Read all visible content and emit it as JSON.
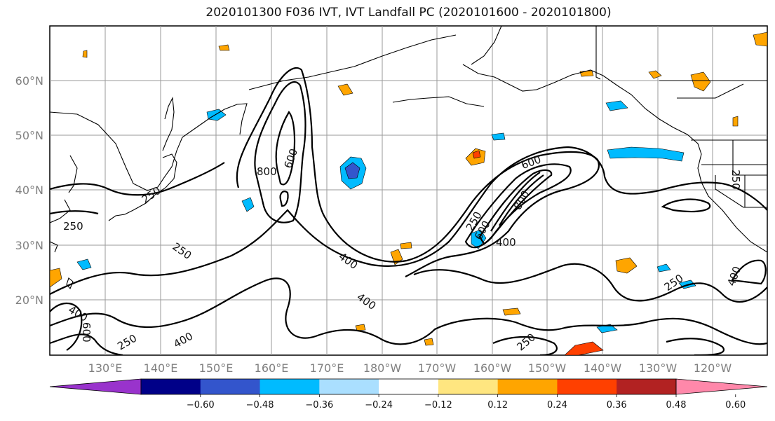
{
  "title": "2020101300 F036 IVT, IVT Landfall PC (2020101600 - 2020101800)",
  "lat_labels": [
    "60°N",
    "50°N",
    "40°N",
    "30°N",
    "20°N"
  ],
  "lon_labels": [
    "130°E",
    "140°E",
    "150°E",
    "160°E",
    "170°E",
    "180°W",
    "170°W",
    "160°W",
    "150°W",
    "140°W",
    "130°W",
    "120°W"
  ],
  "contour_labels": [
    "800",
    "600",
    "600",
    "250",
    "250",
    "250",
    "400",
    "400",
    "400",
    "250",
    "600",
    "800",
    "400",
    "250",
    "400",
    "250",
    "250",
    "400",
    "600",
    "250",
    "250"
  ],
  "colorbar": {
    "colors": [
      "#9933cc",
      "#000088",
      "#3355cc",
      "#00bbff",
      "#aadfff",
      "#ffffff",
      "#ffe680",
      "#ffa500",
      "#ff4000",
      "#b22222",
      "#ff88aa"
    ],
    "ticks": [
      "−0.60",
      "−0.48",
      "−0.36",
      "−0.24",
      "−0.12",
      "0.12",
      "0.24",
      "0.36",
      "0.48",
      "0.60"
    ]
  }
}
